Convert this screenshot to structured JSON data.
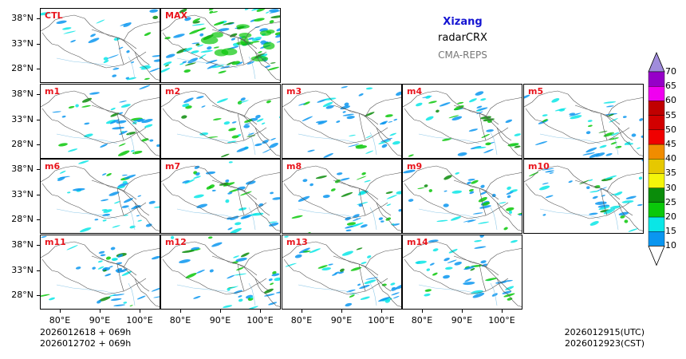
{
  "title": {
    "region": "Xizang",
    "variable": "radarCRX",
    "model": "CMA-REPS"
  },
  "panels": [
    "CTL",
    "MAX",
    "m1",
    "m2",
    "m3",
    "m4",
    "m5",
    "m6",
    "m7",
    "m8",
    "m9",
    "m10",
    "m11",
    "m12",
    "m13",
    "m14"
  ],
  "y_ticks": [
    "38°N",
    "33°N",
    "28°N"
  ],
  "x_ticks": [
    "80°E",
    "90°E",
    "100°E"
  ],
  "init_time": {
    "utc": "2026012618  +  069h",
    "cst": "2026012702  +  069h"
  },
  "valid_time": {
    "utc": "2026012915(UTC)",
    "cst": "2026012923(CST)"
  },
  "colorbar": {
    "levels": [
      "10",
      "15",
      "20",
      "25",
      "30",
      "35",
      "40",
      "45",
      "50",
      "55",
      "60",
      "65",
      "70"
    ],
    "colors": [
      "#0a96f0",
      "#0ae6e6",
      "#0ac80a",
      "#0a8c0a",
      "#f5f50a",
      "#e6c800",
      "#f08c00",
      "#f00000",
      "#d20000",
      "#c00000",
      "#f000f0",
      "#9600c8",
      "#a08cdc"
    ]
  }
}
